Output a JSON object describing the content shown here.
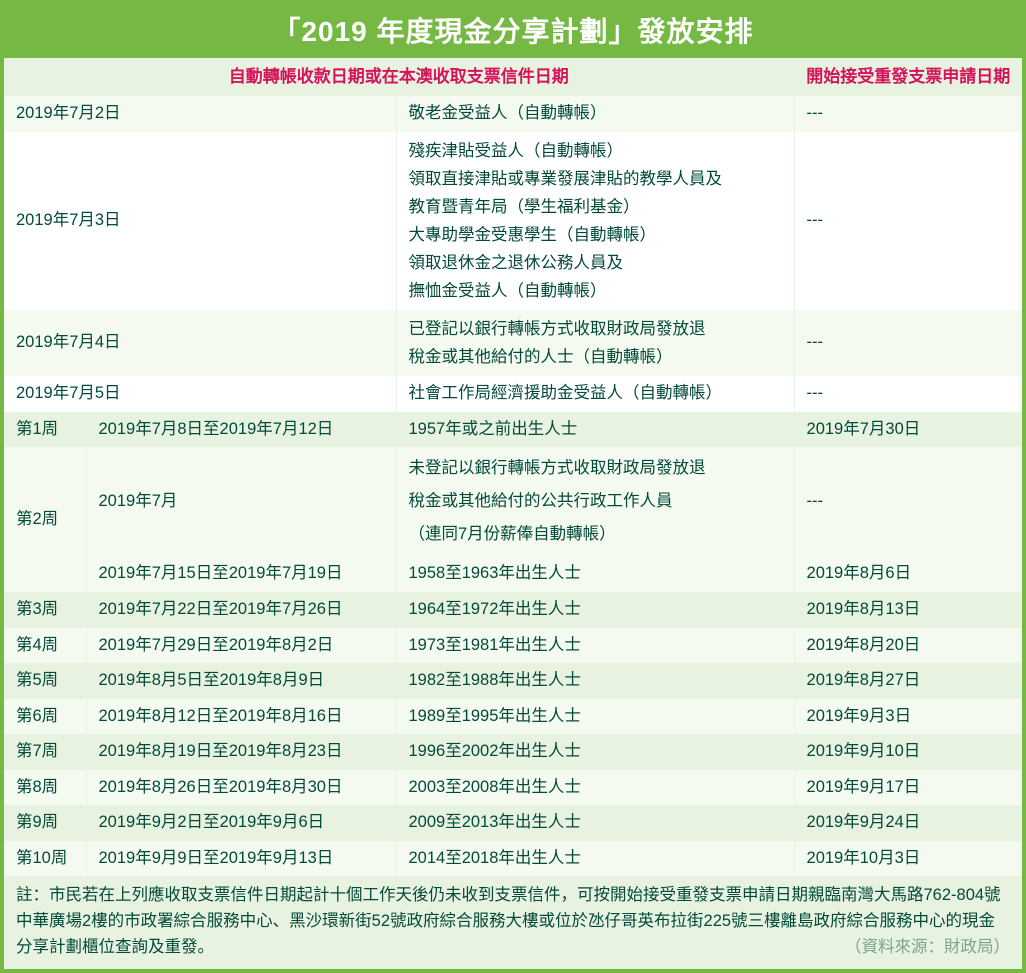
{
  "title": "「2019 年度現金分享計劃」發放安排",
  "headers": {
    "left": "自動轉帳收款日期或在本澳收取支票信件日期",
    "right": "開始接受重發支票申請日期"
  },
  "rows": [
    {
      "cells": [
        "2019年7月2日",
        "敬老金受益人（自動轉帳）",
        "---"
      ],
      "pretype": "early",
      "stripe": "light"
    },
    {
      "cells": [
        "2019年7月3日",
        "殘疾津貼受益人（自動轉帳）\n領取直接津貼或專業發展津貼的教學人員及\n教育暨青年局（學生福利基金）\n大專助學金受惠學生（自動轉帳）\n領取退休金之退休公務人員及\n撫恤金受益人（自動轉帳）",
        "---"
      ],
      "pretype": "early",
      "stripe": "none",
      "multi": true
    },
    {
      "cells": [
        "2019年7月4日",
        "已登記以銀行轉帳方式收取財政局發放退\n稅金或其他給付的人士（自動轉帳）",
        "---"
      ],
      "pretype": "early",
      "stripe": "light",
      "multi": true
    },
    {
      "cells": [
        "2019年7月5日",
        "社會工作局經濟援助金受益人（自動轉帳）",
        "---"
      ],
      "pretype": "early",
      "stripe": "none"
    },
    {
      "week": "第1周",
      "cells": [
        "2019年7月8日至2019年7月12日",
        "1957年或之前出生人士",
        "2019年7月30日"
      ],
      "stripe": "dark"
    },
    {
      "week": "第2周",
      "rowspan": 2,
      "cells": [
        "2019年7月",
        "未登記以銀行轉帳方式收取財政局發放退\n稅金或其他給付的公共行政工作人員\n（連同7月份薪俸自動轉帳）",
        "---"
      ],
      "stripe": "light",
      "multi": true,
      "loose": true
    },
    {
      "cells": [
        "2019年7月15日至2019年7月19日",
        "1958至1963年出生人士",
        "2019年8月6日"
      ],
      "stripe": "light",
      "sub": true
    },
    {
      "week": "第3周",
      "cells": [
        "2019年7月22日至2019年7月26日",
        "1964至1972年出生人士",
        "2019年8月13日"
      ],
      "stripe": "dark"
    },
    {
      "week": "第4周",
      "cells": [
        "2019年7月29日至2019年8月2日",
        "1973至1981年出生人士",
        "2019年8月20日"
      ],
      "stripe": "light"
    },
    {
      "week": "第5周",
      "cells": [
        "2019年8月5日至2019年8月9日",
        "1982至1988年出生人士",
        "2019年8月27日"
      ],
      "stripe": "dark"
    },
    {
      "week": "第6周",
      "cells": [
        "2019年8月12日至2019年8月16日",
        "1989至1995年出生人士",
        "2019年9月3日"
      ],
      "stripe": "light"
    },
    {
      "week": "第7周",
      "cells": [
        "2019年8月19日至2019年8月23日",
        "1996至2002年出生人士",
        "2019年9月10日"
      ],
      "stripe": "dark"
    },
    {
      "week": "第8周",
      "cells": [
        "2019年8月26日至2019年8月30日",
        "2003至2008年出生人士",
        "2019年9月17日"
      ],
      "stripe": "light"
    },
    {
      "week": "第9周",
      "cells": [
        "2019年9月2日至2019年9月6日",
        "2009至2013年出生人士",
        "2019年9月24日"
      ],
      "stripe": "dark"
    },
    {
      "week": "第10周",
      "cells": [
        "2019年9月9日至2019年9月13日",
        "2014至2018年出生人士",
        "2019年10月3日"
      ],
      "stripe": "light"
    }
  ],
  "footnote": "註：市民若在上列應收取支票信件日期起計十個工作天後仍未收到支票信件，可按開始接受重發支票申請日期親臨南灣大馬路762-804號中華廣場2樓的市政署綜合服務中心、黑沙環新街52號政府綜合服務大樓或位於氹仔哥英布拉街225號三樓離島政府綜合服務中心的現金分享計劃櫃位查詢及重發。",
  "source": "（資料來源：財政局）",
  "colors": {
    "brand_green": "#75b843",
    "header_bg": "#e8f2e0",
    "header_text": "#d4145a",
    "body_text": "#034a3a",
    "stripe_light": "#f4faf0",
    "stripe_dark": "#e8f2e0"
  }
}
